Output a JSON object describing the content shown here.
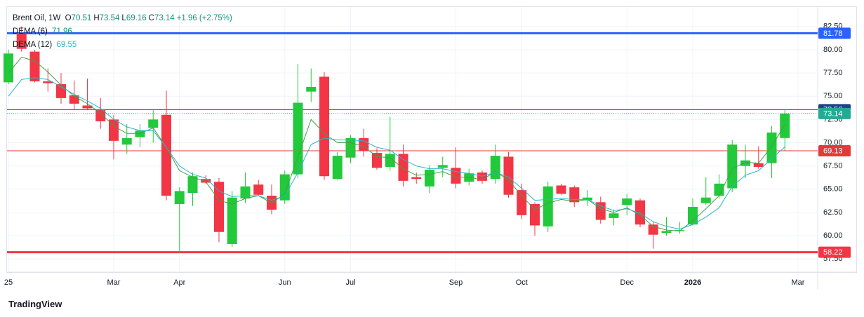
{
  "brand": "TradingView",
  "chart_data": {
    "type": "candlestick",
    "title": "Brent Oil, 1W",
    "ohlc_legend": [
      {
        "label": "O",
        "value": 70.51
      },
      {
        "label": "H",
        "value": 73.54
      },
      {
        "label": "L",
        "value": 69.16
      },
      {
        "label": "C",
        "value": 73.14
      }
    ],
    "change": {
      "value": 1.96,
      "label": "+1.96"
    },
    "change_pct": {
      "value": 2.75,
      "label": "(+2.75%)"
    },
    "up_color": "#22c93a",
    "down_color": "#f23645",
    "categories": [
      "25",
      null,
      null,
      null,
      null,
      null,
      null,
      null,
      "Mar",
      null,
      null,
      null,
      null,
      "Apr",
      null,
      null,
      null,
      null,
      null,
      null,
      null,
      "Jun",
      null,
      null,
      null,
      null,
      "Jul",
      null,
      null,
      null,
      null,
      null,
      null,
      null,
      "Sep",
      null,
      null,
      null,
      null,
      "Oct",
      null,
      null,
      null,
      null,
      null,
      null,
      null,
      "Dec",
      null,
      null,
      null,
      null,
      "2026",
      null,
      null,
      null,
      null,
      null,
      null,
      null,
      "Mar"
    ],
    "open": [
      76.5,
      81.7,
      79.8,
      76.6,
      76.3,
      75.1,
      74,
      73.6,
      72.5,
      69.8,
      70.6,
      71.6,
      73,
      63.4,
      64.6,
      66.1,
      65.8,
      59.1,
      64,
      65.5,
      64.3,
      63.8,
      66.6,
      75.5,
      77.1,
      66.1,
      68.4,
      70.5,
      68.9,
      67.4,
      68.8,
      66.3,
      65.3,
      67.3,
      67.3,
      65.8,
      66.8,
      66.1,
      68.5,
      64.9,
      63.4,
      61,
      65.4,
      65.2,
      63.8,
      63.6,
      61.9,
      63.3,
      63.8,
      61.2,
      60.3,
      60.5,
      61.2,
      63.5,
      64.3,
      65.1,
      67.5,
      67.8,
      67.8,
      70.51,
      null
    ],
    "high": [
      80,
      82.5,
      80,
      78,
      77.5,
      76.7,
      76.9,
      74.8,
      73,
      72,
      72,
      73.5,
      75.6,
      65.2,
      66.8,
      66.5,
      66.2,
      64.8,
      66.8,
      66,
      65.5,
      67,
      78.5,
      78,
      77.6,
      69,
      70.8,
      71.5,
      69.4,
      72.8,
      69.8,
      66.8,
      67.6,
      68.5,
      69.5,
      67.2,
      67,
      69.8,
      69,
      65.6,
      63.6,
      65.8,
      65.6,
      65.4,
      64.9,
      64.2,
      62.8,
      64.5,
      64,
      61.5,
      62,
      61.5,
      64,
      66.3,
      66.6,
      70.3,
      69.8,
      69.6,
      71.8,
      73.54,
      null
    ],
    "low": [
      76.3,
      79.8,
      76.5,
      75.5,
      74.2,
      73.5,
      73.5,
      71.5,
      68.2,
      68.8,
      69.5,
      70,
      63.8,
      58.2,
      63.2,
      65.6,
      59.3,
      58.8,
      63.5,
      64.3,
      62.3,
      63.4,
      66.2,
      74.4,
      66,
      66,
      67.8,
      68.5,
      67.1,
      67,
      65.3,
      65.6,
      64.6,
      66.3,
      65.1,
      65.4,
      65.6,
      65.6,
      64.1,
      61.8,
      60,
      60.4,
      64.4,
      63.1,
      63.2,
      61.3,
      61.1,
      62.2,
      60.9,
      58.6,
      60,
      60.2,
      61.1,
      63.3,
      64,
      64.7,
      66.2,
      67.2,
      66.2,
      69.16,
      null
    ],
    "close": [
      79.6,
      80.1,
      76.6,
      76.4,
      74.8,
      74.2,
      73.7,
      72.3,
      70.2,
      70.5,
      71.3,
      72.5,
      64.3,
      64.8,
      66.4,
      65.7,
      60.4,
      64.1,
      65.3,
      64.4,
      62.8,
      66.6,
      74.3,
      76,
      66.4,
      68.6,
      70.5,
      69.1,
      67.3,
      68.8,
      65.9,
      66.1,
      67.1,
      67.6,
      65.6,
      66.7,
      65.9,
      68.6,
      64.4,
      62.2,
      61.1,
      65.3,
      64.5,
      63.6,
      64.1,
      61.7,
      62.4,
      64,
      61.2,
      60.1,
      60.5,
      60.6,
      63.1,
      64.1,
      65.6,
      69.8,
      68.1,
      67.4,
      71.1,
      73.14,
      null
    ],
    "series": [
      {
        "name": "DEMA (6)",
        "color": "#43a047",
        "values": [
          77.5,
          79.2,
          78.8,
          77.6,
          76.2,
          75,
          74.2,
          73.2,
          71.8,
          71,
          71,
          71.6,
          69.5,
          67,
          66.3,
          65.8,
          63.8,
          63.4,
          64,
          64.3,
          63.5,
          64.5,
          68.5,
          72.5,
          71,
          70,
          70,
          69.6,
          68.5,
          68.4,
          67.2,
          66.5,
          66.6,
          66.9,
          66.3,
          66.3,
          66,
          66.9,
          66,
          64.3,
          62.8,
          63.5,
          63.9,
          63.7,
          63.9,
          62.9,
          62.5,
          63,
          62.2,
          61,
          60.6,
          60.5,
          61.6,
          62.9,
          64.3,
          67.2,
          67.9,
          67.8,
          69.6,
          71.96,
          null
        ]
      },
      {
        "name": "DEMA (12)",
        "color": "#26b5c9",
        "values": [
          75,
          76.8,
          77,
          76.8,
          76,
          75.2,
          74.5,
          73.7,
          72.5,
          71.7,
          71.3,
          71.3,
          69.5,
          67.5,
          66.6,
          66.2,
          64.8,
          64.2,
          64.3,
          64.3,
          63.8,
          64.3,
          66.8,
          69.8,
          70.5,
          70.3,
          70.3,
          70.2,
          69.5,
          69.2,
          68.2,
          67.5,
          67.2,
          67.2,
          66.9,
          66.7,
          66.4,
          66.8,
          66.3,
          65.1,
          63.8,
          63.9,
          64,
          63.9,
          63.9,
          63.2,
          62.7,
          62.9,
          62.4,
          61.5,
          61,
          60.7,
          61.2,
          62,
          63,
          65.3,
          66.5,
          67,
          68.3,
          69.55,
          null
        ]
      }
    ],
    "price_lines": [
      {
        "value": 81.78,
        "color": "#2962ff",
        "width": 3,
        "style": "solid"
      },
      {
        "value": 73.56,
        "color": "#1e3f8f",
        "width": 1,
        "style": "solid"
      },
      {
        "value": 73.14,
        "color": "#22ab94",
        "width": 1,
        "style": "dotted"
      },
      {
        "value": 69.13,
        "color": "#e53935",
        "width": 1,
        "style": "solid"
      },
      {
        "value": 58.22,
        "color": "#f23645",
        "width": 3,
        "style": "solid"
      }
    ],
    "ylim": [
      56.08,
      84.6
    ],
    "yticks": [
      {
        "value": 57.5,
        "label": "57.50"
      },
      {
        "value": 60,
        "label": "60.00"
      },
      {
        "value": 62.5,
        "label": "62.50"
      },
      {
        "value": 65,
        "label": "65.00"
      },
      {
        "value": 67.5,
        "label": "67.50"
      },
      {
        "value": 70,
        "label": "70.00"
      },
      {
        "value": 72.5,
        "label": "72.50"
      },
      {
        "value": 75,
        "label": "75.00"
      },
      {
        "value": 77.5,
        "label": "77.50"
      },
      {
        "value": 80,
        "label": "80.00"
      },
      {
        "value": 82.5,
        "label": "82.50"
      }
    ],
    "grid": true
  }
}
